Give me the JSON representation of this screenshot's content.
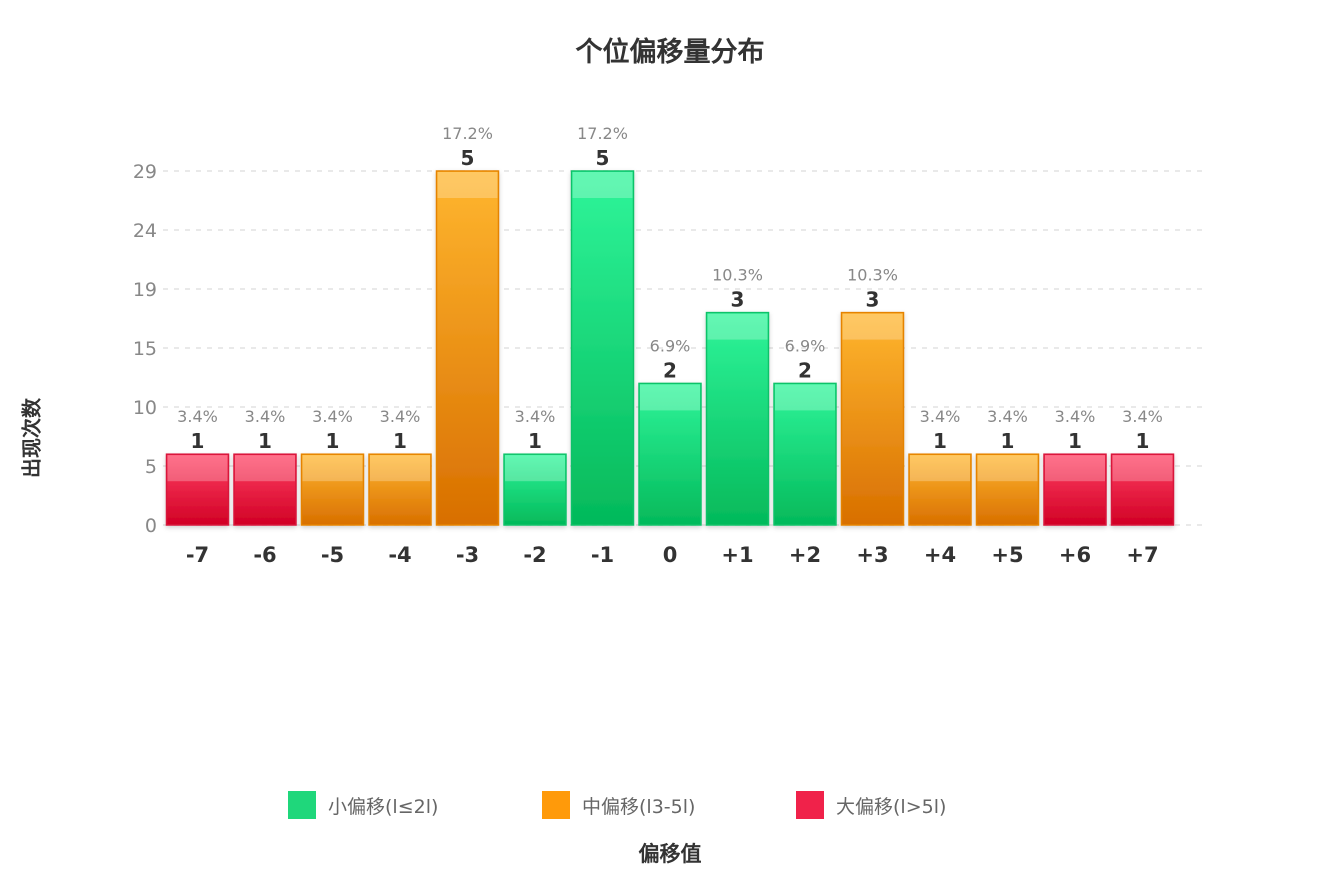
{
  "chart_data": {
    "type": "bar",
    "title": "个位偏移量分布",
    "xlabel": "偏移值",
    "ylabel": "出现次数",
    "categories": [
      "-7",
      "-6",
      "-5",
      "-4",
      "-3",
      "-2",
      "-1",
      "0",
      "+1",
      "+2",
      "+3",
      "+4",
      "+5",
      "+6",
      "+7"
    ],
    "values": [
      1,
      1,
      1,
      1,
      5,
      1,
      5,
      2,
      3,
      2,
      3,
      1,
      1,
      1,
      1
    ],
    "percent_labels": [
      "3.4%",
      "3.4%",
      "3.4%",
      "3.4%",
      "17.2%",
      "3.4%",
      "17.2%",
      "6.9%",
      "10.3%",
      "6.9%",
      "10.3%",
      "3.4%",
      "3.4%",
      "3.4%",
      "3.4%"
    ],
    "groups": [
      "large",
      "large",
      "medium",
      "medium",
      "medium",
      "small",
      "small",
      "small",
      "small",
      "small",
      "medium",
      "medium",
      "medium",
      "large",
      "large"
    ],
    "y_tick_labels": [
      "0",
      "5",
      "10",
      "15",
      "19",
      "24",
      "29"
    ],
    "ylim": [
      0,
      5
    ],
    "grid": true,
    "legend_position": "bottom",
    "legend": [
      {
        "key": "small",
        "label": "小偏移(l≤2l)",
        "color": "#1fd77b"
      },
      {
        "key": "medium",
        "label": "中偏移(l3-5l)",
        "color": "#ff9a0a"
      },
      {
        "key": "large",
        "label": "大偏移(l>5l)",
        "color": "#f0224a"
      }
    ]
  }
}
